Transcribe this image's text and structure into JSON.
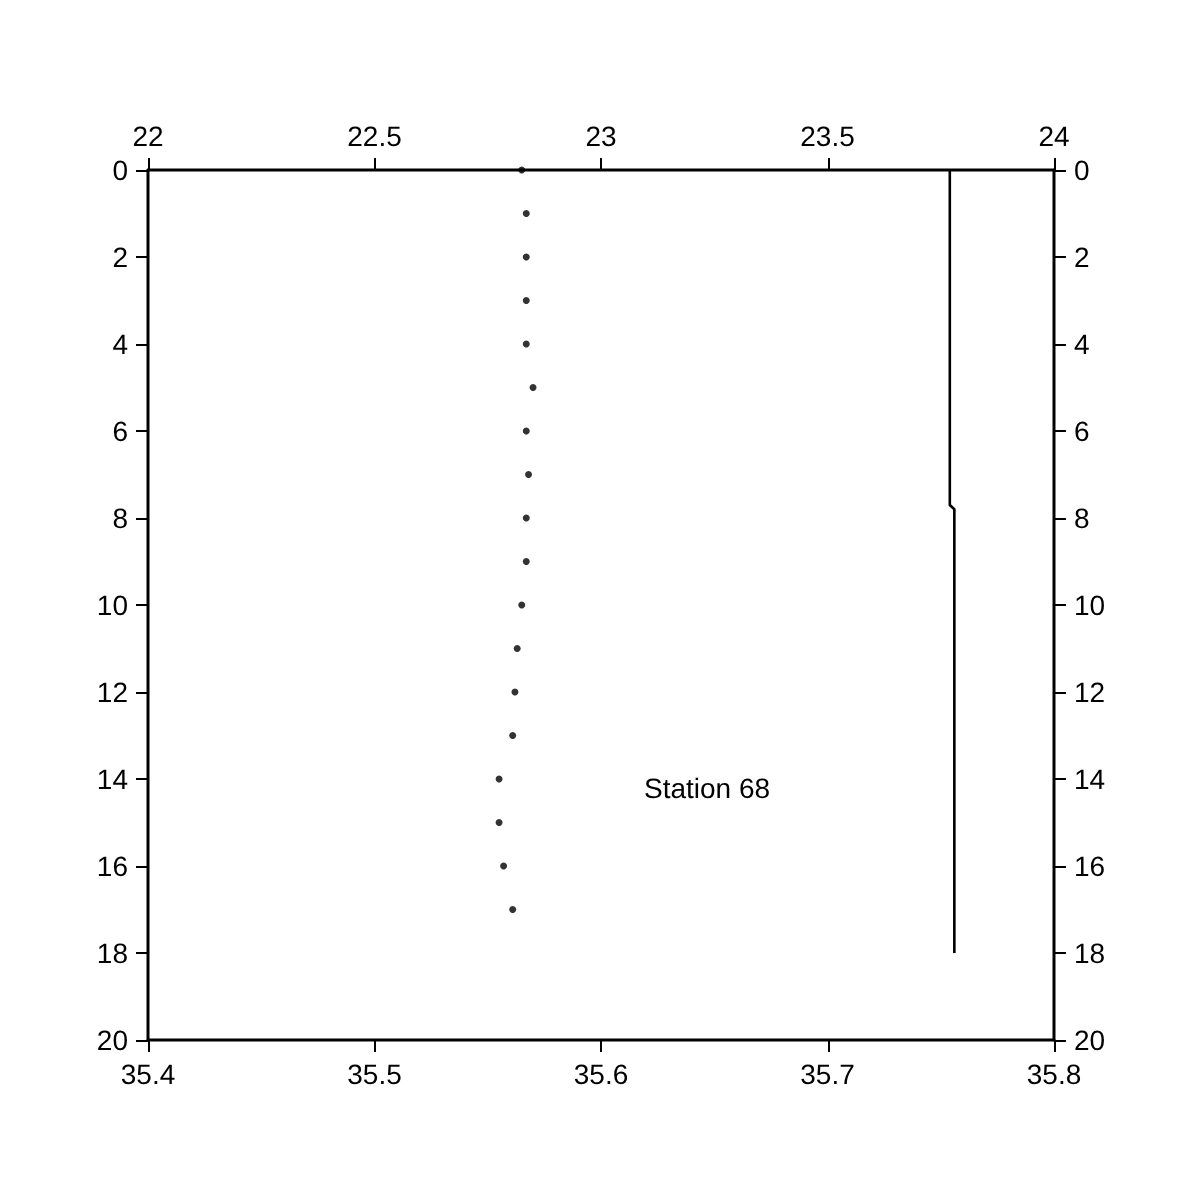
{
  "chart_data": {
    "type": "scatter",
    "xlim": [
      35.4,
      35.8
    ],
    "xticks": [
      35.4,
      35.5,
      35.6,
      35.7,
      35.8
    ],
    "x2lim": [
      22,
      24
    ],
    "x2ticks": [
      22,
      22.5,
      23,
      23.5,
      24
    ],
    "ylim": [
      20,
      0
    ],
    "yticks": [
      0,
      2,
      4,
      6,
      8,
      10,
      12,
      14,
      16,
      18,
      20
    ],
    "y2lim": [
      20,
      0
    ],
    "y2ticks": [
      0,
      2,
      4,
      6,
      8,
      10,
      12,
      14,
      16,
      18,
      20
    ],
    "grid": false,
    "series": [
      {
        "marker": "circle",
        "color": "#000000",
        "x": [
          35.565,
          35.567,
          35.567,
          35.567,
          35.567,
          35.57,
          35.567,
          35.568,
          35.567,
          35.567,
          35.565,
          35.563,
          35.562,
          35.561,
          35.555,
          35.555,
          35.557,
          35.561
        ],
        "values": [
          0,
          1,
          2,
          3,
          4,
          5,
          6,
          7,
          8,
          9,
          10,
          11,
          12,
          13,
          14,
          15,
          16,
          17
        ]
      },
      {
        "type": "line",
        "axis": "x2",
        "marker": "none",
        "line_style": "solid",
        "color": "#000000",
        "x": [
          23.77,
          23.77,
          23.78,
          23.78
        ],
        "values": [
          0,
          7.7,
          7.8,
          18
        ]
      }
    ],
    "annotations": [
      "Station 68"
    ]
  }
}
